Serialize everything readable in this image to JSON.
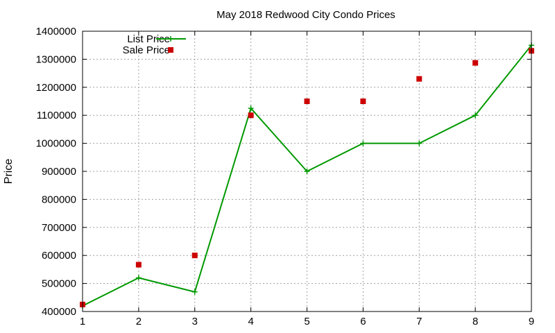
{
  "chart_data": {
    "type": "line",
    "title": "May 2018 Redwood City Condo Prices",
    "xlabel": "",
    "ylabel": "Price",
    "x": [
      1,
      2,
      3,
      4,
      5,
      6,
      7,
      8,
      9
    ],
    "xlim": [
      1,
      9
    ],
    "ylim": [
      400000,
      1400000
    ],
    "xticks": [
      "1",
      "2",
      "3",
      "4",
      "5",
      "6",
      "7",
      "8",
      "9"
    ],
    "yticks": [
      "400000",
      "500000",
      "600000",
      "700000",
      "800000",
      "900000",
      "1000000",
      "1100000",
      "1200000",
      "1300000",
      "1400000"
    ],
    "grid": true,
    "legend_position": "top-left",
    "series": [
      {
        "name": "List Price",
        "style": "line+cross",
        "color": "#009900",
        "values": [
          420000,
          520000,
          470000,
          1125000,
          900000,
          1000000,
          1000000,
          1100000,
          1350000
        ]
      },
      {
        "name": "Sale Price",
        "style": "points-square",
        "color": "#cc0000",
        "values": [
          425000,
          567000,
          600000,
          1100000,
          1150000,
          1150000,
          1230000,
          1287000,
          1330000
        ]
      }
    ]
  }
}
